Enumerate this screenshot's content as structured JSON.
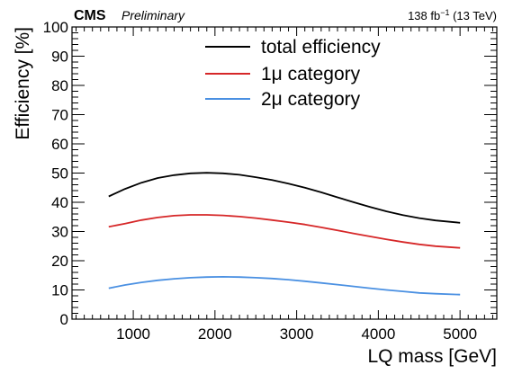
{
  "chart_data": {
    "type": "line",
    "experiment": "CMS",
    "status": "Preliminary",
    "lumi_main": "138 fb",
    "lumi_sup": "−1",
    "lumi_energy": " (13 TeV)",
    "xlabel": "LQ mass [GeV]",
    "ylabel": "Efficiency [%]",
    "xlim": [
      250,
      5450
    ],
    "ylim": [
      0,
      100
    ],
    "x_ticks": [
      1000,
      2000,
      3000,
      4000,
      5000
    ],
    "y_ticks": [
      0,
      10,
      20,
      30,
      40,
      50,
      60,
      70,
      80,
      90,
      100
    ],
    "legend_position": "top-center",
    "grid": false,
    "series": [
      {
        "name": "total efficiency",
        "color": "#000000",
        "x": [
          700,
          900,
          1100,
          1300,
          1500,
          1700,
          1900,
          2100,
          2300,
          2500,
          2700,
          2900,
          3100,
          3300,
          3500,
          3700,
          3900,
          4100,
          4300,
          4500,
          4700,
          5000
        ],
        "values": [
          42.0,
          44.6,
          46.7,
          48.3,
          49.3,
          49.9,
          50.1,
          49.9,
          49.4,
          48.6,
          47.6,
          46.4,
          45.0,
          43.4,
          41.7,
          40.0,
          38.4,
          36.9,
          35.6,
          34.6,
          33.8,
          33.0
        ]
      },
      {
        "name": "1μ category",
        "color": "#d62728",
        "x": [
          700,
          900,
          1100,
          1300,
          1500,
          1700,
          1900,
          2100,
          2300,
          2500,
          2700,
          2900,
          3100,
          3300,
          3500,
          3700,
          3900,
          4100,
          4300,
          4500,
          4700,
          5000
        ],
        "values": [
          31.6,
          32.7,
          33.9,
          34.8,
          35.4,
          35.7,
          35.7,
          35.5,
          35.1,
          34.6,
          33.9,
          33.2,
          32.4,
          31.4,
          30.4,
          29.3,
          28.3,
          27.3,
          26.4,
          25.6,
          25.0,
          24.4
        ]
      },
      {
        "name": "2μ category",
        "color": "#4a90e2",
        "x": [
          700,
          900,
          1100,
          1300,
          1500,
          1700,
          1900,
          2100,
          2300,
          2500,
          2700,
          2900,
          3100,
          3300,
          3500,
          3700,
          3900,
          4100,
          4300,
          4500,
          4700,
          5000
        ],
        "values": [
          10.6,
          11.7,
          12.6,
          13.3,
          13.8,
          14.2,
          14.4,
          14.5,
          14.4,
          14.2,
          13.9,
          13.5,
          13.0,
          12.4,
          11.8,
          11.2,
          10.6,
          10.0,
          9.5,
          9.0,
          8.7,
          8.4
        ]
      }
    ]
  }
}
